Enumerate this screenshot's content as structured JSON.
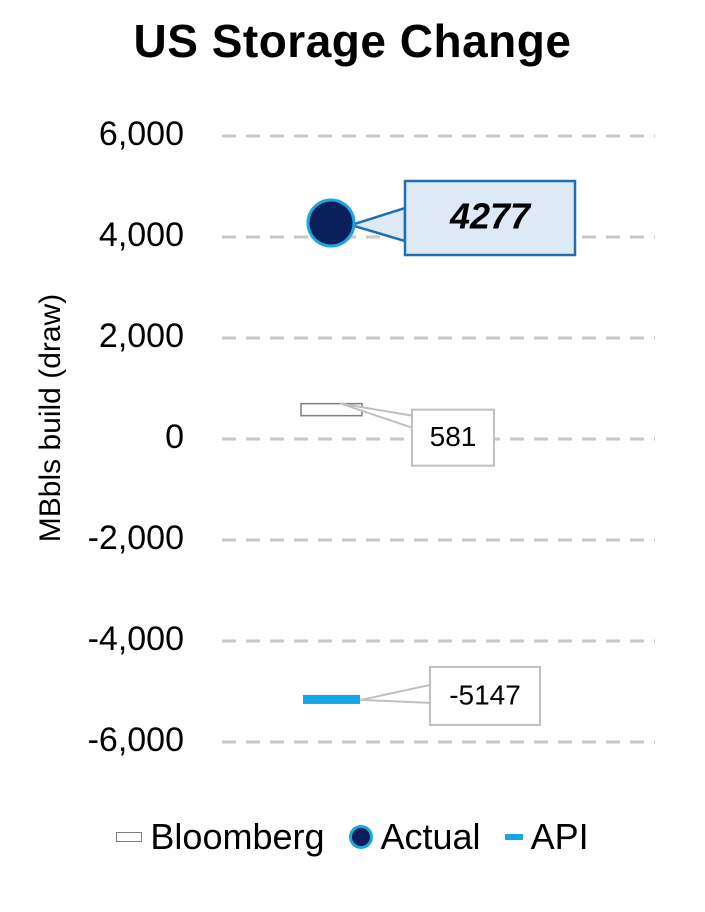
{
  "chart_data": {
    "type": "scatter",
    "title": "US Storage Change",
    "ylabel": "MBbls build (draw)",
    "ylim": [
      -6000,
      6000
    ],
    "yticks": [
      6000,
      4000,
      2000,
      0,
      -2000,
      -4000,
      -6000
    ],
    "ytick_labels": [
      "6,000",
      "4,000",
      "2,000",
      "0",
      "-2,000",
      "-4,000",
      "-6,000"
    ],
    "grid": true,
    "legend_position": "bottom",
    "series": [
      {
        "name": "Bloomberg",
        "value": 581,
        "label": "581",
        "marker": "hollow-dash",
        "color": "#7f7f7f"
      },
      {
        "name": "Actual",
        "value": 4277,
        "label": "4277",
        "marker": "circle",
        "color": "#0b1f5c",
        "edge_color": "#1ea5e0"
      },
      {
        "name": "API",
        "value": -5147,
        "label": "-5147",
        "marker": "dash",
        "color": "#13a7e6"
      }
    ]
  },
  "legend": {
    "bloomberg": "Bloomberg",
    "actual": "Actual",
    "api": "API"
  }
}
